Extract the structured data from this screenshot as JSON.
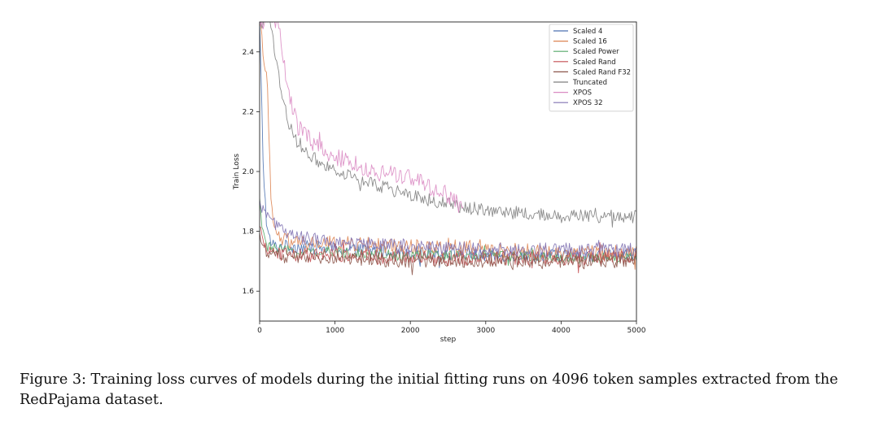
{
  "caption": "Figure 3: Training loss curves of models during the initial fitting runs on 4096 token samples extracted from the RedPajama dataset.",
  "chart_data": {
    "type": "line",
    "title": "",
    "xlabel": "step",
    "ylabel": "Train Loss",
    "xlim": [
      0,
      5000
    ],
    "ylim": [
      1.5,
      2.5
    ],
    "xticks": [
      0,
      1000,
      2000,
      3000,
      4000,
      5000
    ],
    "yticks": [
      1.6,
      1.8,
      2.0,
      2.2,
      2.4
    ],
    "grid": false,
    "legend_position": "top-right",
    "series": [
      {
        "name": "Scaled 4",
        "color": "#4c72b0",
        "x": [
          0,
          50,
          100,
          150,
          200,
          300,
          500,
          1000,
          2000,
          3000,
          4000,
          5000
        ],
        "y": [
          2.5,
          2.0,
          1.8,
          1.76,
          1.75,
          1.75,
          1.75,
          1.74,
          1.73,
          1.72,
          1.72,
          1.72
        ]
      },
      {
        "name": "Scaled 16",
        "color": "#dd8452",
        "x": [
          0,
          100,
          150,
          200,
          300,
          500,
          1000,
          2000,
          3000,
          4000,
          5000
        ],
        "y": [
          2.5,
          2.3,
          1.9,
          1.8,
          1.77,
          1.76,
          1.76,
          1.75,
          1.74,
          1.73,
          1.73
        ]
      },
      {
        "name": "Scaled Power",
        "color": "#55a868",
        "x": [
          0,
          50,
          100,
          200,
          500,
          1000,
          2000,
          3000,
          4000,
          5000
        ],
        "y": [
          1.9,
          1.78,
          1.75,
          1.74,
          1.73,
          1.73,
          1.72,
          1.72,
          1.71,
          1.71
        ]
      },
      {
        "name": "Scaled Rand",
        "color": "#c44e52",
        "x": [
          0,
          50,
          100,
          200,
          500,
          1000,
          2000,
          3000,
          4000,
          5000
        ],
        "y": [
          1.8,
          1.76,
          1.74,
          1.73,
          1.72,
          1.72,
          1.71,
          1.71,
          1.71,
          1.71
        ]
      },
      {
        "name": "Scaled Rand F32",
        "color": "#8c564b",
        "x": [
          0,
          50,
          100,
          200,
          500,
          1000,
          2000,
          3000,
          4000,
          5000
        ],
        "y": [
          1.78,
          1.75,
          1.73,
          1.72,
          1.71,
          1.71,
          1.7,
          1.7,
          1.7,
          1.7
        ]
      },
      {
        "name": "Truncated",
        "color": "#7f7f7f",
        "x": [
          0,
          150,
          200,
          300,
          400,
          500,
          700,
          1000,
          1500,
          2000,
          2500,
          3000,
          3500,
          4000,
          4500,
          5000
        ],
        "y": [
          2.5,
          2.5,
          2.4,
          2.25,
          2.15,
          2.1,
          2.05,
          2.0,
          1.96,
          1.92,
          1.89,
          1.87,
          1.86,
          1.85,
          1.85,
          1.85
        ]
      },
      {
        "name": "XPOS",
        "color": "#da8bc3",
        "x": [
          0,
          250,
          300,
          400,
          500,
          700,
          1000,
          1500,
          2000,
          2500,
          2700
        ],
        "y": [
          2.5,
          2.5,
          2.38,
          2.25,
          2.15,
          2.1,
          2.05,
          2.0,
          1.98,
          1.92,
          1.88
        ]
      },
      {
        "name": "XPOS 32",
        "color": "#8172b3",
        "x": [
          0,
          100,
          200,
          300,
          500,
          1000,
          2000,
          3000,
          4000,
          5000
        ],
        "y": [
          1.88,
          1.85,
          1.83,
          1.8,
          1.78,
          1.76,
          1.75,
          1.74,
          1.74,
          1.74
        ]
      }
    ]
  }
}
